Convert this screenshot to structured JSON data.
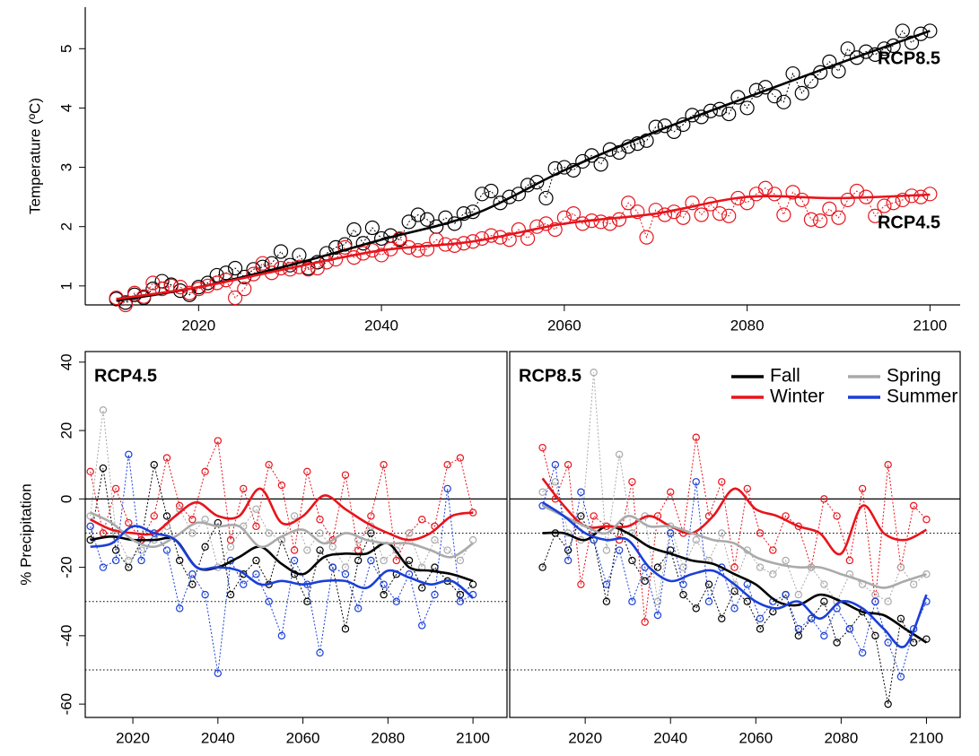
{
  "chart_data": [
    {
      "type": "line",
      "ylabel": "Temperature (ºC)",
      "label_series": true,
      "xlim": [
        2007.6,
        2103.3
      ],
      "ylim": [
        0.68,
        5.7
      ],
      "xticks": [
        2020,
        2040,
        2060,
        2080,
        2100
      ],
      "yticks": [
        1,
        2,
        3,
        4,
        5
      ],
      "x": [
        2011,
        2012,
        2013,
        2014,
        2015,
        2016,
        2017,
        2018,
        2019,
        2020,
        2021,
        2022,
        2023,
        2024,
        2025,
        2026,
        2027,
        2028,
        2029,
        2030,
        2031,
        2032,
        2033,
        2034,
        2035,
        2036,
        2037,
        2038,
        2039,
        2040,
        2041,
        2042,
        2043,
        2044,
        2045,
        2046,
        2047,
        2048,
        2049,
        2050,
        2051,
        2052,
        2053,
        2054,
        2055,
        2056,
        2057,
        2058,
        2059,
        2060,
        2061,
        2062,
        2063,
        2064,
        2065,
        2066,
        2067,
        2068,
        2069,
        2070,
        2071,
        2072,
        2073,
        2074,
        2075,
        2076,
        2077,
        2078,
        2079,
        2080,
        2081,
        2082,
        2083,
        2084,
        2085,
        2086,
        2087,
        2088,
        2089,
        2090,
        2091,
        2092,
        2093,
        2094,
        2095,
        2096,
        2097,
        2098,
        2099,
        2100
      ],
      "smooth_x": [
        2011,
        2020,
        2030,
        2040,
        2050,
        2060,
        2070,
        2080,
        2090,
        2100
      ],
      "series": [
        {
          "name": "RCP8.5",
          "color": "#000000",
          "values": [
            0.78,
            0.72,
            0.85,
            0.8,
            0.95,
            1.08,
            1.02,
            0.92,
            0.85,
            0.98,
            1.05,
            1.18,
            1.22,
            1.3,
            1.15,
            1.28,
            1.32,
            1.38,
            1.58,
            1.35,
            1.52,
            1.3,
            1.4,
            1.55,
            1.65,
            1.7,
            1.95,
            1.72,
            1.98,
            1.8,
            1.85,
            1.78,
            2.08,
            2.2,
            2.12,
            2.0,
            2.15,
            2.05,
            2.22,
            2.25,
            2.55,
            2.6,
            2.4,
            2.5,
            2.55,
            2.7,
            2.75,
            2.48,
            2.98,
            3.0,
            2.95,
            3.1,
            3.2,
            3.05,
            3.3,
            3.25,
            3.35,
            3.4,
            3.45,
            3.68,
            3.7,
            3.6,
            3.72,
            3.88,
            3.85,
            3.95,
            3.98,
            3.9,
            4.18,
            4.0,
            4.3,
            4.35,
            4.2,
            4.1,
            4.58,
            4.25,
            4.45,
            4.6,
            4.78,
            4.62,
            5.0,
            4.85,
            4.95,
            4.9,
            5.0,
            5.05,
            5.3,
            5.1,
            5.25,
            5.3
          ],
          "smooth": [
            0.75,
            0.98,
            1.35,
            1.78,
            2.2,
            2.95,
            3.6,
            4.18,
            4.75,
            5.3
          ]
        },
        {
          "name": "RCP4.5",
          "color": "#e8141c",
          "values": [
            0.8,
            0.68,
            0.88,
            0.82,
            1.05,
            0.95,
            1.0,
            0.98,
            0.88,
            0.95,
            1.0,
            1.05,
            1.1,
            0.8,
            0.95,
            1.2,
            1.38,
            1.22,
            1.3,
            1.28,
            1.32,
            1.28,
            1.3,
            1.4,
            1.45,
            1.65,
            1.48,
            1.55,
            1.6,
            1.52,
            1.62,
            1.8,
            1.65,
            1.6,
            1.62,
            1.78,
            1.7,
            1.68,
            1.72,
            1.75,
            1.8,
            1.85,
            1.82,
            1.78,
            1.95,
            1.8,
            2.0,
            2.05,
            1.95,
            2.15,
            2.22,
            2.05,
            2.1,
            2.08,
            2.05,
            2.12,
            2.4,
            2.25,
            1.82,
            2.28,
            2.2,
            2.25,
            2.15,
            2.4,
            2.2,
            2.38,
            2.22,
            2.18,
            2.48,
            2.4,
            2.55,
            2.65,
            2.55,
            2.2,
            2.58,
            2.45,
            2.12,
            2.1,
            2.3,
            2.15,
            2.45,
            2.6,
            2.5,
            2.18,
            2.35,
            2.4,
            2.45,
            2.52,
            2.5,
            2.55
          ],
          "smooth": [
            0.78,
            0.98,
            1.3,
            1.6,
            1.75,
            2.05,
            2.22,
            2.5,
            2.48,
            2.54
          ]
        }
      ]
    },
    {
      "type": "line",
      "title": "RCP4.5",
      "ylabel": "% Precipitation",
      "box": true,
      "xlim": [
        2008.8,
        2108
      ],
      "ylim": [
        -63.9,
        43.1
      ],
      "xticks": [
        2020,
        2040,
        2060,
        2080,
        2100
      ],
      "yticks": [
        40,
        20,
        0,
        -20,
        -40,
        -60
      ],
      "hlines": [
        {
          "value": 0,
          "style": "solid"
        },
        {
          "value": -10,
          "style": "dotted"
        },
        {
          "value": -30,
          "style": "dotted"
        },
        {
          "value": -50,
          "style": "dotted"
        }
      ],
      "x": [
        2010,
        2013,
        2016,
        2019,
        2022,
        2025,
        2028,
        2031,
        2034,
        2037,
        2040,
        2043,
        2046,
        2049,
        2052,
        2055,
        2058,
        2061,
        2064,
        2067,
        2070,
        2073,
        2076,
        2079,
        2082,
        2085,
        2088,
        2091,
        2094,
        2097,
        2100
      ],
      "smooth_x": [
        2010,
        2015,
        2020,
        2025,
        2030,
        2035,
        2040,
        2045,
        2050,
        2055,
        2060,
        2065,
        2070,
        2075,
        2080,
        2085,
        2090,
        2095,
        2100
      ],
      "series": [
        {
          "name": "Fall",
          "color": "#000000",
          "values": [
            -12,
            9,
            -15,
            -20,
            -12,
            10,
            -5,
            -18,
            -25,
            -14,
            -7,
            -28,
            -22,
            -18,
            -25,
            -12,
            -22,
            -30,
            -15,
            -20,
            -38,
            -18,
            -10,
            -28,
            -22,
            -18,
            -26,
            -20,
            -24,
            -28,
            -25
          ],
          "smooth": [
            -12,
            -11,
            -12,
            -12,
            -12,
            -20,
            -20,
            -17,
            -14,
            -19,
            -22,
            -17,
            -16,
            -16,
            -13,
            -20,
            -21,
            -22,
            -24
          ]
        },
        {
          "name": "Winter",
          "color": "#e8141c",
          "values": [
            8,
            -10,
            3,
            -7,
            -12,
            -5,
            12,
            -2,
            -6,
            8,
            17,
            -12,
            3,
            -8,
            10,
            4,
            -15,
            8,
            -6,
            -12,
            7,
            -15,
            -5,
            10,
            -18,
            -10,
            -6,
            -8,
            10,
            12,
            -4
          ],
          "smooth": [
            -6,
            -9,
            -10,
            -10,
            -5,
            -1,
            -5,
            -5,
            3,
            -7,
            -5,
            1,
            -3,
            -7,
            -10,
            -12,
            -10,
            -5,
            -4
          ]
        },
        {
          "name": "Spring",
          "color": "#aaaaaa",
          "values": [
            -5,
            26,
            -10,
            -18,
            -15,
            -12,
            -8,
            -3,
            -10,
            -6,
            -20,
            -14,
            -8,
            -3,
            -10,
            -12,
            -5,
            -15,
            -10,
            -14,
            -20,
            -12,
            -8,
            -18,
            -15,
            -10,
            -20,
            -12,
            -15,
            -18,
            -12
          ],
          "smooth": [
            -4,
            -7,
            -12,
            -14,
            -11,
            -7,
            -8,
            -8,
            -14,
            -11,
            -9,
            -13,
            -10,
            -12,
            -13,
            -13,
            -15,
            -17,
            -13
          ]
        },
        {
          "name": "Summer",
          "color": "#1a3fd8",
          "values": [
            -8,
            -20,
            -18,
            13,
            -18,
            -10,
            -15,
            -32,
            -22,
            -28,
            -51,
            -18,
            -25,
            -22,
            -30,
            -40,
            -18,
            -25,
            -45,
            -20,
            -22,
            -32,
            -18,
            -25,
            -30,
            -22,
            -37,
            -28,
            3,
            -30,
            -28
          ],
          "smooth": [
            -14,
            -13,
            -8,
            -10,
            -12,
            -20,
            -20,
            -21,
            -25,
            -24,
            -25,
            -24,
            -24,
            -26,
            -21,
            -23,
            -25,
            -24,
            -29
          ]
        }
      ]
    },
    {
      "type": "line",
      "title": "RCP8.5",
      "box": true,
      "legend": "upper right",
      "xlim": [
        2002.3,
        2107.9
      ],
      "ylim": [
        -63.9,
        43.1
      ],
      "xticks": [
        2020,
        2040,
        2060,
        2080,
        2100
      ],
      "hlines": [
        {
          "value": 0,
          "style": "solid"
        },
        {
          "value": -10,
          "style": "dotted"
        },
        {
          "value": -50,
          "style": "dotted"
        }
      ],
      "x": [
        2010,
        2013,
        2016,
        2019,
        2022,
        2025,
        2028,
        2031,
        2034,
        2037,
        2040,
        2043,
        2046,
        2049,
        2052,
        2055,
        2058,
        2061,
        2064,
        2067,
        2070,
        2073,
        2076,
        2079,
        2082,
        2085,
        2088,
        2091,
        2094,
        2097,
        2100
      ],
      "smooth_x": [
        2010,
        2015,
        2020,
        2025,
        2030,
        2035,
        2040,
        2045,
        2050,
        2055,
        2060,
        2065,
        2070,
        2075,
        2080,
        2085,
        2090,
        2095,
        2100
      ],
      "series": [
        {
          "name": "Fall",
          "color": "#000000",
          "values": [
            -20,
            -10,
            -15,
            -5,
            -12,
            -30,
            -8,
            -18,
            -24,
            -20,
            -15,
            -28,
            -32,
            -25,
            -35,
            -27,
            -30,
            -38,
            -33,
            -28,
            -40,
            -35,
            -30,
            -42,
            -38,
            -33,
            -40,
            -60,
            -35,
            -42,
            -41
          ],
          "smooth": [
            -10,
            -10,
            -12,
            -8,
            -10,
            -14,
            -16,
            -18,
            -19,
            -22,
            -25,
            -30,
            -31,
            -28,
            -30,
            -33,
            -34,
            -38,
            -42
          ]
        },
        {
          "name": "Winter",
          "color": "#e8141c",
          "values": [
            15,
            0,
            10,
            -25,
            -5,
            -8,
            -12,
            5,
            -36,
            -5,
            2,
            -10,
            18,
            -5,
            5,
            -20,
            3,
            -10,
            -15,
            -5,
            -8,
            -20,
            0,
            -5,
            -18,
            3,
            -30,
            10,
            -20,
            -2,
            -6
          ],
          "smooth": [
            6,
            -2,
            -8,
            -8,
            -8,
            -5,
            -8,
            -10,
            -5,
            3,
            -3,
            -5,
            -8,
            -10,
            -16,
            -2,
            -10,
            -12,
            -9
          ]
        },
        {
          "name": "Spring",
          "color": "#aaaaaa",
          "values": [
            2,
            5,
            -10,
            -12,
            37,
            -15,
            13,
            -10,
            -5,
            -30,
            -8,
            -20,
            -12,
            -18,
            -10,
            -25,
            -15,
            -20,
            -22,
            -18,
            -28,
            -20,
            -25,
            -30,
            -22,
            -25,
            -28,
            -30,
            -20,
            -25,
            -22
          ],
          "smooth": [
            -2,
            -5,
            -8,
            -10,
            -5,
            -8,
            -8,
            -10,
            -12,
            -13,
            -17,
            -19,
            -20,
            -20,
            -22,
            -24,
            -26,
            -24,
            -22
          ]
        },
        {
          "name": "Summer",
          "color": "#1a3fd8",
          "values": [
            -2,
            10,
            -18,
            2,
            -12,
            -25,
            -15,
            -30,
            -20,
            -34,
            -10,
            -25,
            5,
            -30,
            -20,
            -32,
            -25,
            -35,
            -30,
            -28,
            -38,
            -35,
            -40,
            -32,
            -38,
            -45,
            -30,
            -42,
            -52,
            -38,
            -30
          ],
          "smooth": [
            -1,
            -5,
            -10,
            -12,
            -12,
            -20,
            -24,
            -22,
            -21,
            -25,
            -30,
            -32,
            -30,
            -35,
            -30,
            -32,
            -38,
            -43,
            -28
          ]
        }
      ]
    }
  ]
}
